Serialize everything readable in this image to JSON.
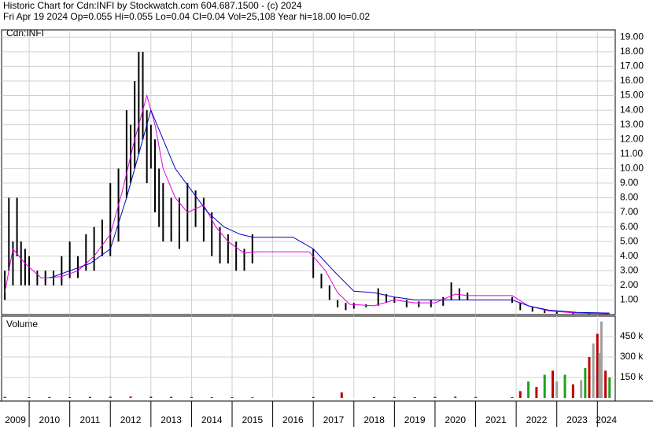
{
  "header": {
    "title": "Historic Chart for Cdn:INFI by Stockwatch.com 604.687.1500 - (c) 2024",
    "quote": "Fri Apr 19 2024   Op=0.055   Hi=0.055   Lo=0.04   Cl=0.04   Vol=25,108   Year hi=18.00   lo=0.02"
  },
  "chart_data": [
    {
      "type": "range",
      "label": "Cdn:INFI",
      "color": "#000000",
      "grid": true,
      "xlim": [
        2009.32,
        2024.44
      ],
      "xticks": [
        2009,
        2010,
        2011,
        2012,
        2013,
        2014,
        2015,
        2016,
        2017,
        2018,
        2019,
        2020,
        2021,
        2022,
        2023,
        2024
      ],
      "ylim": [
        0,
        19.5
      ],
      "yticks": [
        {
          "value": 1,
          "label": "1.00"
        },
        {
          "value": 2,
          "label": "2.00"
        },
        {
          "value": 3,
          "label": "3.00"
        },
        {
          "value": 4,
          "label": "4.00"
        },
        {
          "value": 5,
          "label": "5.00"
        },
        {
          "value": 6,
          "label": "6.00"
        },
        {
          "value": 7,
          "label": "7.00"
        },
        {
          "value": 8,
          "label": "8.00"
        },
        {
          "value": 9,
          "label": "9.00"
        },
        {
          "value": 10,
          "label": "10.00"
        },
        {
          "value": 11,
          "label": "11.00"
        },
        {
          "value": 12,
          "label": "12.00"
        },
        {
          "value": 13,
          "label": "13.00"
        },
        {
          "value": 14,
          "label": "14.00"
        },
        {
          "value": 15,
          "label": "15.00"
        },
        {
          "value": 16,
          "label": "16.00"
        },
        {
          "value": 17,
          "label": "17.00"
        },
        {
          "value": 18,
          "label": "18.00"
        },
        {
          "value": 19,
          "label": "19.00"
        }
      ],
      "x": [
        2009.4,
        2009.5,
        2009.6,
        2009.7,
        2009.8,
        2009.9,
        2010.0,
        2010.2,
        2010.4,
        2010.6,
        2010.8,
        2011.0,
        2011.2,
        2011.4,
        2011.6,
        2011.8,
        2012.0,
        2012.2,
        2012.4,
        2012.5,
        2012.6,
        2012.7,
        2012.8,
        2012.9,
        2013.0,
        2013.1,
        2013.2,
        2013.3,
        2013.5,
        2013.7,
        2013.9,
        2014.1,
        2014.3,
        2014.5,
        2014.7,
        2014.9,
        2015.1,
        2015.3,
        2015.5,
        2017.0,
        2017.2,
        2017.4,
        2017.6,
        2017.8,
        2018.0,
        2018.3,
        2018.6,
        2018.8,
        2019.0,
        2019.3,
        2019.6,
        2019.9,
        2020.2,
        2020.4,
        2020.6,
        2020.8,
        2021.9,
        2022.1,
        2022.4,
        2022.7,
        2023.0,
        2023.4,
        2023.8,
        2024.2
      ],
      "high": [
        3,
        8,
        5,
        8,
        5,
        4.5,
        4,
        3,
        3,
        3,
        4,
        5,
        4,
        5.5,
        6,
        6.5,
        9,
        10,
        14,
        13,
        16,
        18,
        18,
        14,
        13,
        12,
        10,
        9,
        8,
        8,
        9,
        8.5,
        8,
        7,
        6,
        5.5,
        5,
        4.5,
        5.5,
        4.5,
        2.8,
        2,
        1,
        0.8,
        0.8,
        0.7,
        1.8,
        1.4,
        1.2,
        1,
        0.9,
        1,
        1.2,
        2.2,
        1.8,
        1.5,
        1.2,
        0.8,
        0.5,
        0.3,
        0.2,
        0.15,
        0.1,
        0.08
      ],
      "low": [
        1,
        3,
        2,
        4,
        2,
        2,
        2,
        2,
        2,
        2,
        2,
        2.5,
        2.5,
        3,
        3,
        4,
        4,
        5,
        8,
        9,
        10,
        11,
        12,
        9,
        10,
        7,
        6,
        5,
        5,
        4.5,
        5,
        6,
        5,
        4,
        3.5,
        3.5,
        3,
        3,
        3.5,
        2.5,
        1.8,
        1,
        0.5,
        0.3,
        0.4,
        0.5,
        0.6,
        0.8,
        0.8,
        0.5,
        0.5,
        0.5,
        0.6,
        1,
        1,
        1,
        0.8,
        0.3,
        0.2,
        0.1,
        0.05,
        0.04,
        0.03,
        0.02
      ],
      "series": [
        {
          "color": "#e000e0",
          "x": [
            2009.4,
            2009.6,
            2009.9,
            2010.3,
            2010.8,
            2011.2,
            2011.6,
            2012.0,
            2012.3,
            2012.6,
            2012.9,
            2013.1,
            2013.3,
            2013.6,
            2013.9,
            2014.3,
            2014.6,
            2014.9,
            2015.3,
            2015.6,
            2016.9,
            2017.3,
            2017.6,
            2017.9,
            2018.5,
            2019.0,
            2019.5,
            2020.0,
            2020.5,
            2020.8,
            2021.9,
            2022.3,
            2022.8,
            2023.5,
            2024.3
          ],
          "values": [
            1.5,
            4.5,
            3.5,
            2.5,
            2.6,
            3.0,
            4.0,
            5.5,
            8.5,
            12,
            15,
            13,
            10,
            8,
            7,
            7.5,
            6,
            5,
            4.2,
            4.3,
            4.3,
            3,
            1.5,
            0.7,
            0.6,
            1.0,
            0.8,
            0.8,
            1.4,
            1.3,
            1.3,
            0.6,
            0.25,
            0.1,
            0.05
          ]
        },
        {
          "color": "#0000c0",
          "x": [
            2010.5,
            2011.0,
            2011.5,
            2012.0,
            2012.4,
            2012.7,
            2013.0,
            2013.3,
            2013.6,
            2014.0,
            2014.4,
            2014.8,
            2015.2,
            2015.5,
            2016.5,
            2017.0,
            2017.5,
            2018.0,
            2018.5,
            2019.0,
            2019.5,
            2020.0,
            2020.5,
            2021.0,
            2021.9,
            2022.3,
            2022.8,
            2023.5,
            2024.3
          ],
          "values": [
            2.5,
            3,
            3.5,
            4.5,
            8,
            11,
            14,
            12,
            10,
            8.5,
            7,
            6,
            5.5,
            5.3,
            5.3,
            4.5,
            3,
            1.6,
            1.5,
            1.2,
            1.0,
            1.0,
            1.0,
            1.0,
            1.0,
            0.6,
            0.3,
            0.15,
            0.1
          ]
        }
      ]
    },
    {
      "type": "bar",
      "label": "Volume",
      "xlim": [
        2009.32,
        2024.44
      ],
      "xticks": [
        2009,
        2010,
        2011,
        2012,
        2013,
        2014,
        2015,
        2016,
        2017,
        2018,
        2019,
        2020,
        2021,
        2022,
        2023,
        2024
      ],
      "ylim": [
        0,
        600000
      ],
      "yticks": [
        {
          "value": 150000,
          "label": "150 k"
        },
        {
          "value": 300000,
          "label": "300 k"
        },
        {
          "value": 450000,
          "label": "450 k"
        }
      ],
      "x": [
        2009.4,
        2010.0,
        2010.5,
        2011.0,
        2011.5,
        2012.0,
        2012.5,
        2013.0,
        2013.5,
        2014.0,
        2014.5,
        2015.0,
        2015.5,
        2017.0,
        2017.7,
        2018.5,
        2019.0,
        2019.5,
        2020.0,
        2020.5,
        2021.0,
        2021.9,
        2022.1,
        2022.3,
        2022.5,
        2022.7,
        2022.9,
        2023.0,
        2023.2,
        2023.4,
        2023.6,
        2023.7,
        2023.8,
        2023.9,
        2024.0,
        2024.05,
        2024.1,
        2024.2,
        2024.3
      ],
      "values": [
        8000,
        6000,
        7000,
        6000,
        8000,
        9000,
        10000,
        9000,
        8000,
        7000,
        6000,
        6000,
        5000,
        7000,
        40000,
        6000,
        7000,
        6000,
        8000,
        9000,
        7000,
        6000,
        50000,
        120000,
        80000,
        170000,
        200000,
        120000,
        170000,
        100000,
        130000,
        220000,
        300000,
        400000,
        470000,
        330000,
        560000,
        200000,
        150000
      ],
      "colors": [
        "#c00000",
        "#c00000",
        "#c00000",
        "#c00000",
        "#c00000",
        "#c00000",
        "#c00000",
        "#c00000",
        "#c00000",
        "#c00000",
        "#c00000",
        "#c00000",
        "#c00000",
        "#c00000",
        "#c00000",
        "#c00000",
        "#c00000",
        "#c00000",
        "#c00000",
        "#c00000",
        "#c00000",
        "#c00000",
        "#c00000",
        "#20a020",
        "#c00000",
        "#20a020",
        "#c00000",
        "#a0a0a0",
        "#20a020",
        "#c00000",
        "#a0a0a0",
        "#20a020",
        "#c00000",
        "#a0a0a0",
        "#c00000",
        "#a0a0a0",
        "#a0a0a0",
        "#c00000",
        "#20a020"
      ]
    }
  ]
}
